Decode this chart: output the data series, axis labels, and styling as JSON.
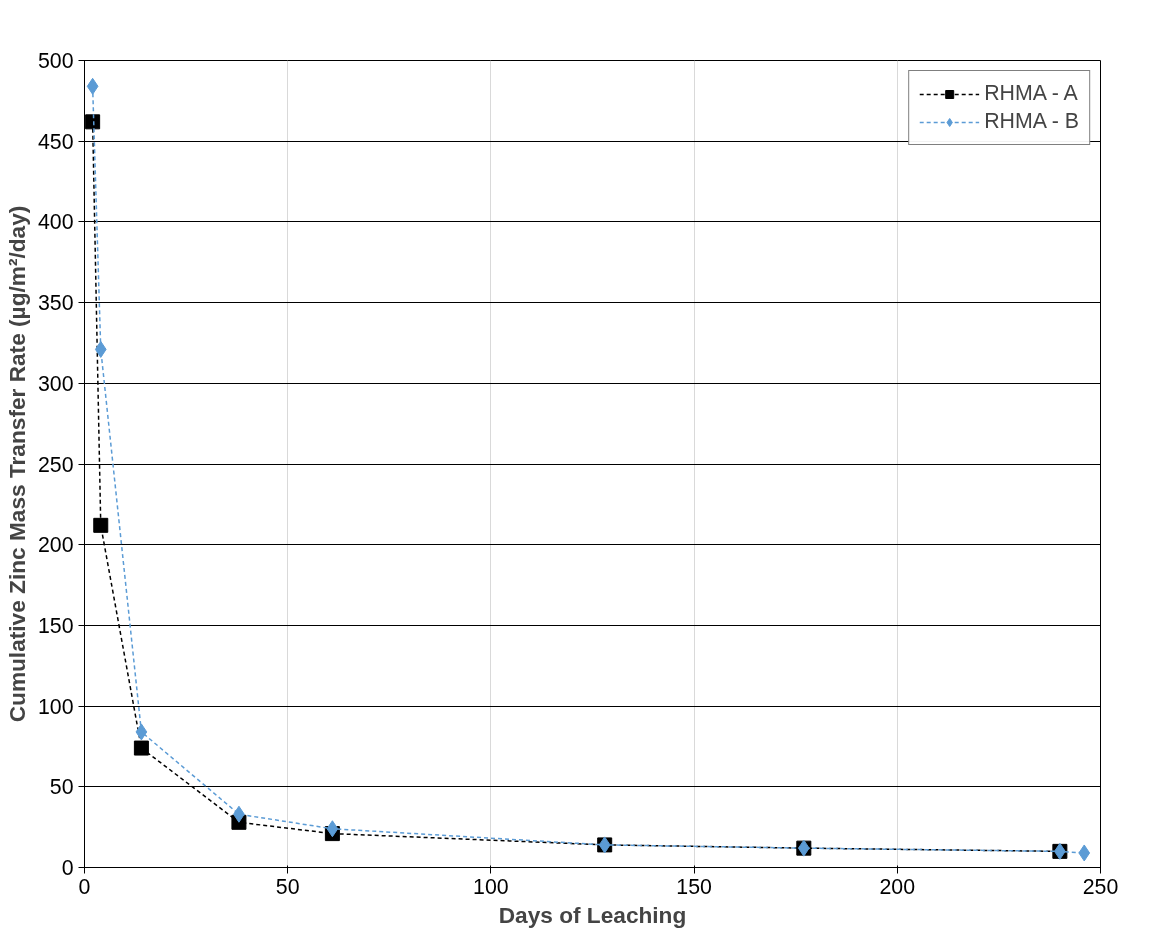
{
  "chart_data": {
    "type": "line",
    "xlabel": "Days of Leaching",
    "ylabel": "Cumulative Zinc Mass Transfer Rate (µg/m²/day)",
    "xlim": [
      0,
      250
    ],
    "xticks": [
      0,
      50,
      100,
      150,
      200,
      250
    ],
    "ylim": [
      0,
      500
    ],
    "yticks": [
      0,
      50,
      100,
      150,
      200,
      250,
      300,
      350,
      400,
      450,
      500
    ],
    "grid": true,
    "legend": "top right",
    "line_style": "dashed",
    "series": [
      {
        "name": "RHMA - A",
        "color": "#000000",
        "marker": "square",
        "x": [
          2,
          4,
          14,
          38,
          61,
          128,
          177,
          240
        ],
        "values": [
          462,
          212,
          74,
          28,
          21,
          14,
          12,
          10
        ]
      },
      {
        "name": "RHMA - B",
        "color": "#5b9bd5",
        "marker": "diamond",
        "x": [
          2,
          4,
          14,
          38,
          61,
          128,
          177,
          240,
          246
        ],
        "values": [
          484,
          321,
          84,
          33,
          24,
          14,
          12,
          10,
          9
        ]
      }
    ]
  }
}
